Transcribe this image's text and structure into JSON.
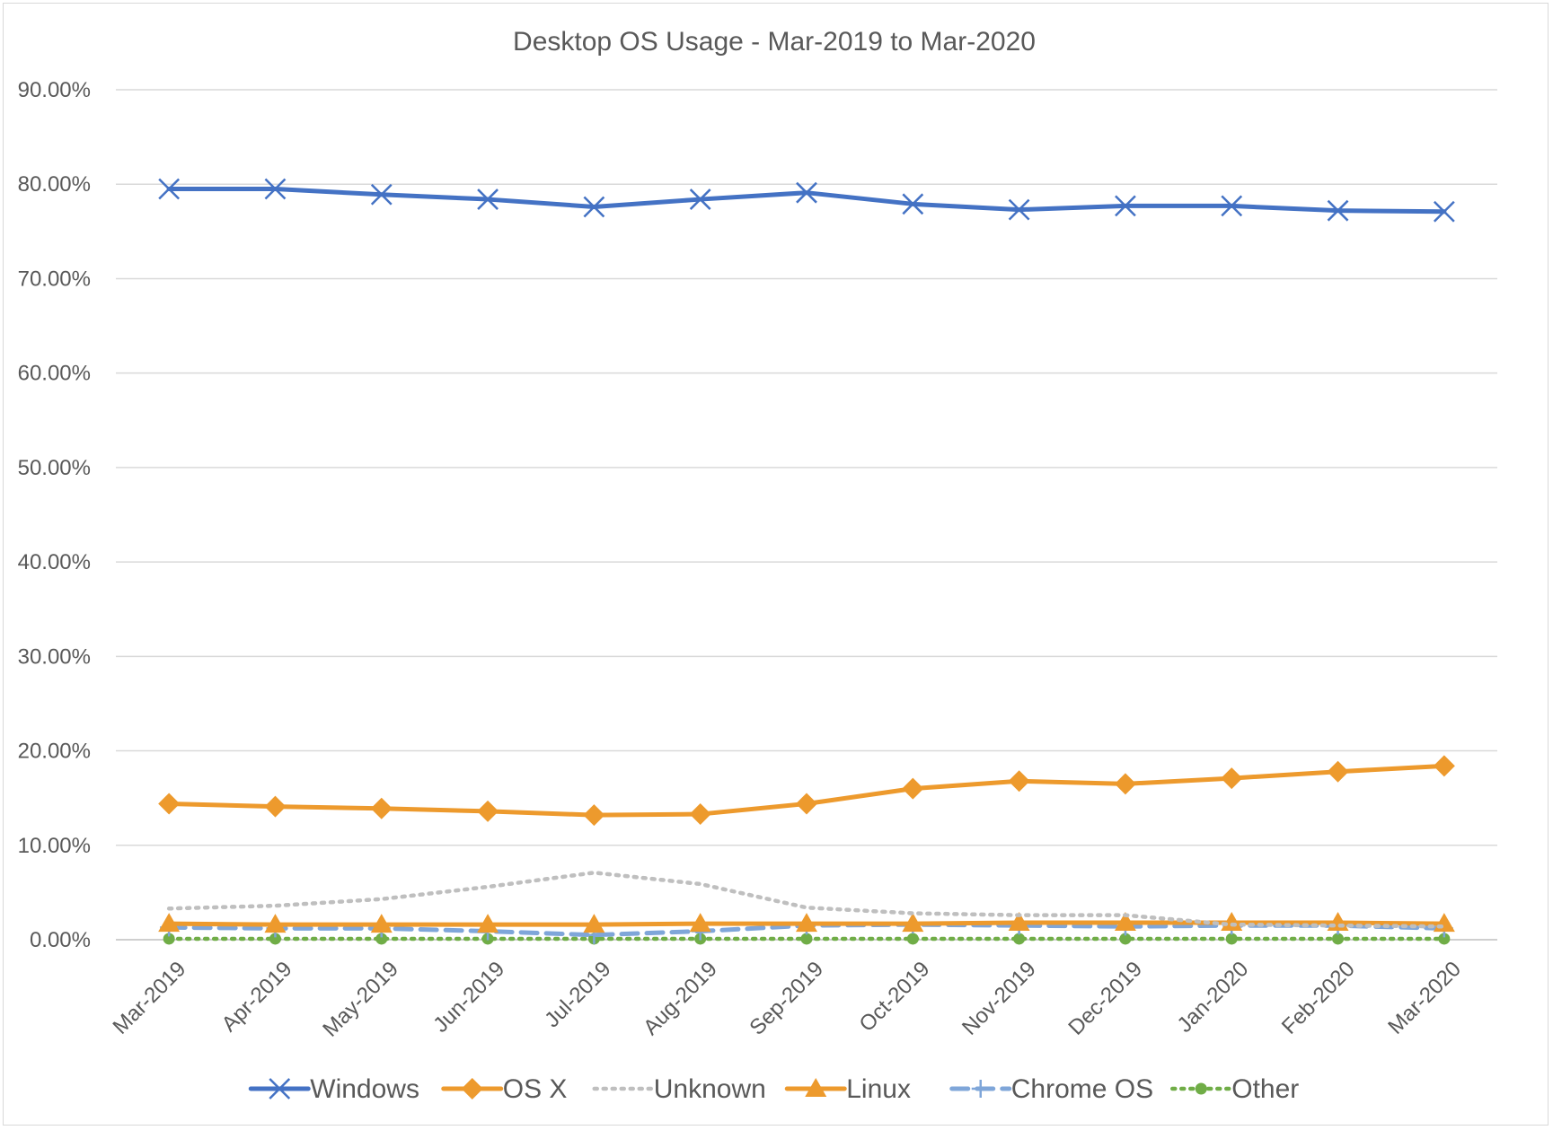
{
  "chart_data": {
    "type": "line",
    "title": "Desktop OS Usage - Mar-2019 to Mar-2020",
    "xlabel": "",
    "ylabel": "",
    "ylim": [
      0,
      90
    ],
    "yticks": [
      "0.00%",
      "10.00%",
      "20.00%",
      "30.00%",
      "40.00%",
      "50.00%",
      "60.00%",
      "70.00%",
      "80.00%",
      "90.00%"
    ],
    "yticks_values": [
      0,
      10,
      20,
      30,
      40,
      50,
      60,
      70,
      80,
      90
    ],
    "grid": true,
    "legend_position": "bottom",
    "categories": [
      "Mar-2019",
      "Apr-2019",
      "May-2019",
      "Jun-2019",
      "Jul-2019",
      "Aug-2019",
      "Sep-2019",
      "Oct-2019",
      "Nov-2019",
      "Dec-2019",
      "Jan-2020",
      "Feb-2020",
      "Mar-2020"
    ],
    "series": [
      {
        "name": "Windows",
        "color": "#4472c4",
        "marker": "x",
        "dash": "solid",
        "values": [
          79.5,
          79.5,
          78.9,
          78.4,
          77.6,
          78.4,
          79.1,
          77.9,
          77.3,
          77.7,
          77.7,
          77.2,
          77.1
        ]
      },
      {
        "name": "OS X",
        "color": "#ed9a2d",
        "marker": "diamond",
        "dash": "solid",
        "values": [
          14.4,
          14.1,
          13.9,
          13.6,
          13.2,
          13.3,
          14.4,
          16.0,
          16.8,
          16.5,
          17.1,
          17.8,
          18.4
        ]
      },
      {
        "name": "Unknown",
        "color": "#bfbfbf",
        "marker": "none",
        "dash": "dot",
        "values": [
          3.3,
          3.6,
          4.3,
          5.6,
          7.1,
          5.9,
          3.4,
          2.8,
          2.6,
          2.6,
          1.6,
          1.5,
          1.4
        ]
      },
      {
        "name": "Linux",
        "color": "#ed9a2d",
        "marker": "triangle",
        "dash": "solid",
        "values": [
          1.7,
          1.6,
          1.6,
          1.6,
          1.6,
          1.7,
          1.7,
          1.7,
          1.8,
          1.8,
          1.8,
          1.8,
          1.7
        ]
      },
      {
        "name": "Chrome OS",
        "color": "#7fa6d9",
        "marker": "plus",
        "dash": "dash",
        "values": [
          1.3,
          1.2,
          1.2,
          0.9,
          0.5,
          0.9,
          1.5,
          1.6,
          1.5,
          1.4,
          1.5,
          1.5,
          1.2
        ]
      },
      {
        "name": "Other",
        "color": "#70ad47",
        "marker": "circle",
        "dash": "dot",
        "values": [
          0.1,
          0.1,
          0.1,
          0.1,
          0.1,
          0.1,
          0.1,
          0.1,
          0.1,
          0.1,
          0.1,
          0.1,
          0.1
        ]
      }
    ]
  }
}
